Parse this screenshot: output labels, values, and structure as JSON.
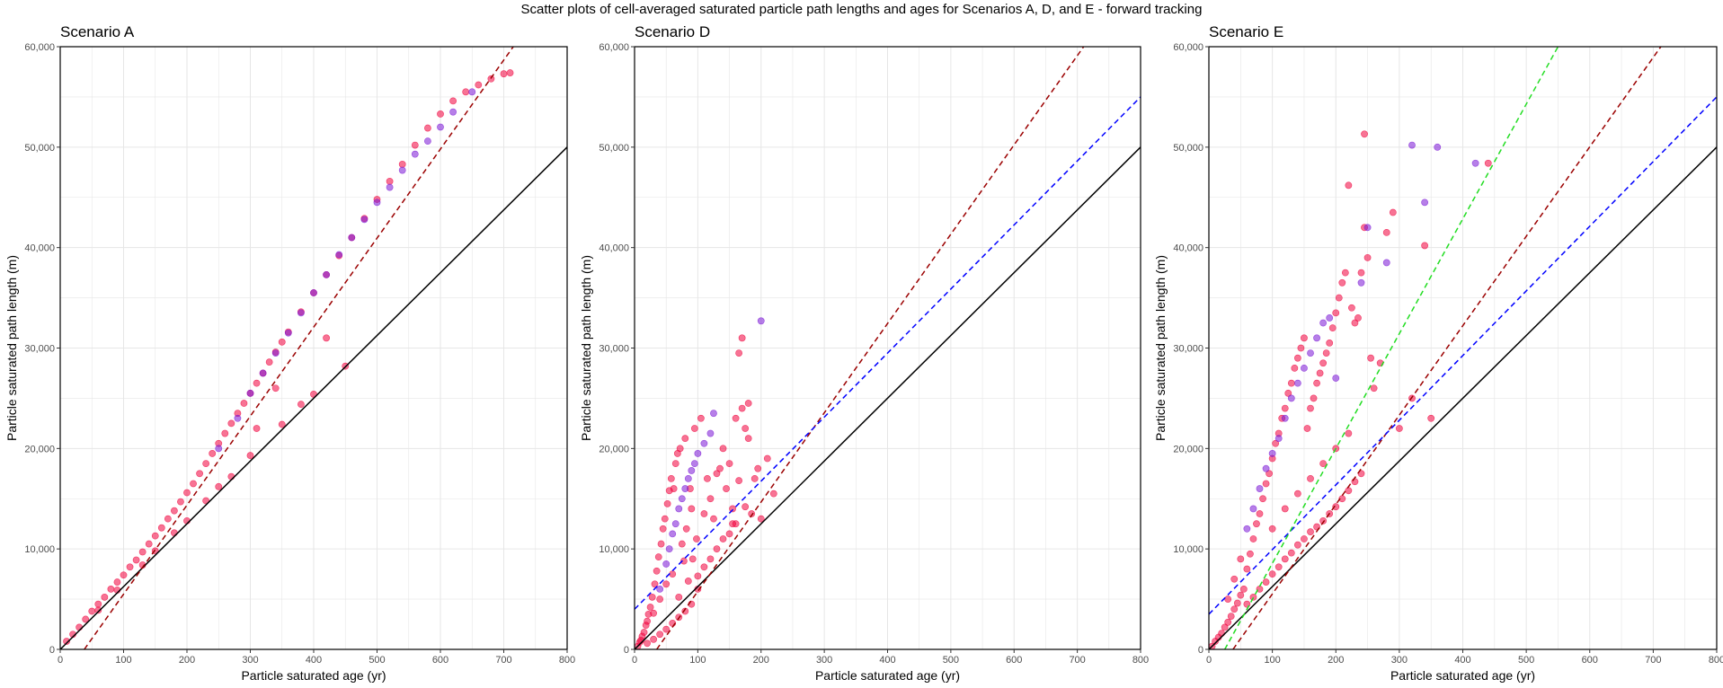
{
  "figure": {
    "title": "Scatter plots of cell-averaged saturated particle path lengths and ages for Scenarios A, D, and E - forward tracking"
  },
  "colors": {
    "point_red": "#f0003c",
    "point_purple": "#7a16d6",
    "identity_line": "#000000",
    "dashed_darkred": "#9b0000",
    "dashed_blue": "#0000ff",
    "dashed_green": "#22dd22",
    "grid": "#e6e6e6",
    "panel_border": "#000000"
  },
  "chart_data": [
    {
      "type": "scatter",
      "title": "Scenario A",
      "xlabel": "Particle saturated age (yr)",
      "ylabel": "Particle saturated path length (m)",
      "xlim": [
        0,
        800
      ],
      "ylim": [
        0,
        60000
      ],
      "xticks": [
        "0",
        "100",
        "200",
        "300",
        "400",
        "500",
        "600",
        "700",
        "800"
      ],
      "yticks": [
        "0",
        "10,000",
        "20,000",
        "30,000",
        "40,000",
        "50,000",
        "60,000"
      ],
      "grid": true,
      "lines": [
        {
          "style": "solid",
          "color": "#000000",
          "x": [
            0,
            800
          ],
          "y": [
            0,
            50000
          ]
        },
        {
          "style": "dashed",
          "color": "#9b0000",
          "x": [
            38,
            715
          ],
          "y": [
            0,
            60000
          ]
        }
      ],
      "series": [
        {
          "color": "#f0003c",
          "x": [
            10,
            20,
            30,
            40,
            50,
            60,
            70,
            80,
            90,
            100,
            110,
            120,
            130,
            140,
            150,
            160,
            170,
            180,
            190,
            200,
            210,
            220,
            230,
            240,
            250,
            260,
            270,
            280,
            290,
            300,
            310,
            320,
            330,
            340,
            350,
            360,
            380,
            400,
            420,
            440,
            460,
            480,
            500,
            520,
            540,
            560,
            580,
            600,
            620,
            640,
            660,
            680,
            700,
            710,
            150,
            200,
            250,
            300,
            350,
            400,
            450,
            380,
            270,
            230,
            180,
            130,
            90,
            60,
            310,
            340,
            420
          ],
          "y": [
            800,
            1500,
            2200,
            3000,
            3800,
            4500,
            5200,
            6000,
            6700,
            7400,
            8200,
            8900,
            9700,
            10500,
            11300,
            12100,
            13000,
            13800,
            14700,
            15600,
            16500,
            17500,
            18500,
            19500,
            20500,
            21500,
            22500,
            23500,
            24500,
            25500,
            26500,
            27500,
            28600,
            29600,
            30600,
            31600,
            33600,
            35500,
            37300,
            39200,
            41000,
            42900,
            44800,
            46600,
            48300,
            50200,
            51900,
            53300,
            54600,
            55500,
            56200,
            56800,
            57300,
            57400,
            9800,
            12800,
            16200,
            19300,
            22400,
            25400,
            28200,
            24400,
            17200,
            14800,
            11600,
            8400,
            5900,
            3900,
            22000,
            26000,
            31000
          ]
        },
        {
          "color": "#7a16d6",
          "x": [
            250,
            280,
            300,
            320,
            340,
            360,
            380,
            400,
            420,
            440,
            460,
            480,
            500,
            520,
            540,
            560,
            580,
            600,
            620,
            650
          ],
          "y": [
            20000,
            23000,
            25500,
            27500,
            29500,
            31500,
            33500,
            35500,
            37300,
            39300,
            41000,
            42800,
            44500,
            46000,
            47700,
            49300,
            50600,
            52000,
            53500,
            55500
          ]
        }
      ]
    },
    {
      "type": "scatter",
      "title": "Scenario D",
      "xlabel": "Particle saturated age (yr)",
      "ylabel": "Particle saturated path length (m)",
      "xlim": [
        0,
        800
      ],
      "ylim": [
        0,
        60000
      ],
      "xticks": [
        "0",
        "100",
        "200",
        "300",
        "400",
        "500",
        "600",
        "700",
        "800"
      ],
      "yticks": [
        "0",
        "10,000",
        "20,000",
        "30,000",
        "40,000",
        "50,000",
        "60,000"
      ],
      "grid": true,
      "lines": [
        {
          "style": "solid",
          "color": "#000000",
          "x": [
            0,
            800
          ],
          "y": [
            0,
            50000
          ]
        },
        {
          "style": "dashed",
          "color": "#9b0000",
          "x": [
            35,
            710
          ],
          "y": [
            0,
            60000
          ]
        },
        {
          "style": "dashed",
          "color": "#0000ff",
          "x": [
            0,
            800
          ],
          "y": [
            4000,
            55000
          ]
        }
      ],
      "series": [
        {
          "color": "#f0003c",
          "x": [
            5,
            8,
            10,
            12,
            15,
            18,
            20,
            22,
            25,
            28,
            30,
            32,
            35,
            38,
            40,
            42,
            45,
            48,
            50,
            52,
            55,
            58,
            60,
            62,
            65,
            68,
            70,
            72,
            75,
            78,
            80,
            82,
            85,
            88,
            90,
            92,
            95,
            98,
            100,
            105,
            110,
            115,
            120,
            125,
            130,
            135,
            140,
            145,
            150,
            155,
            160,
            165,
            170,
            175,
            180,
            185,
            190,
            200,
            210,
            220,
            160,
            170,
            180,
            120,
            140,
            150,
            100,
            90,
            80,
            70,
            60,
            50,
            40,
            30,
            20,
            110,
            130,
            155,
            165,
            175,
            195
          ],
          "y": [
            300,
            700,
            900,
            1300,
            1700,
            2400,
            2800,
            3500,
            4200,
            5200,
            3600,
            6500,
            7800,
            9200,
            5000,
            10500,
            12000,
            13000,
            6500,
            14500,
            15800,
            17000,
            7500,
            16000,
            18500,
            19500,
            5200,
            20000,
            10500,
            8800,
            21000,
            12000,
            6800,
            16000,
            14000,
            9000,
            22000,
            11000,
            7300,
            23000,
            8200,
            17000,
            9000,
            13000,
            10000,
            18000,
            11000,
            16000,
            11500,
            14000,
            12500,
            29500,
            31000,
            22000,
            24500,
            13500,
            17000,
            13000,
            19000,
            15500,
            23000,
            24000,
            21000,
            15000,
            20000,
            18500,
            6000,
            4500,
            3800,
            3200,
            2600,
            2000,
            1500,
            1000,
            600,
            13500,
            17500,
            12500,
            16800,
            14200,
            18000
          ]
        },
        {
          "color": "#7a16d6",
          "x": [
            40,
            50,
            55,
            60,
            65,
            70,
            75,
            80,
            85,
            90,
            95,
            100,
            110,
            120,
            125,
            200
          ],
          "y": [
            6000,
            8500,
            10000,
            11500,
            12500,
            14000,
            15000,
            16000,
            17000,
            17800,
            18500,
            19500,
            20500,
            21500,
            23500,
            32700
          ]
        }
      ]
    },
    {
      "type": "scatter",
      "title": "Scenario E",
      "xlabel": "Particle saturated age (yr)",
      "ylabel": "Particle saturated path length (m)",
      "xlim": [
        0,
        800
      ],
      "ylim": [
        0,
        60000
      ],
      "xticks": [
        "0",
        "100",
        "200",
        "300",
        "400",
        "500",
        "600",
        "700",
        "800"
      ],
      "yticks": [
        "0",
        "10,000",
        "20,000",
        "30,000",
        "40,000",
        "50,000",
        "60,000"
      ],
      "grid": true,
      "lines": [
        {
          "style": "solid",
          "color": "#000000",
          "x": [
            0,
            800
          ],
          "y": [
            0,
            50000
          ]
        },
        {
          "style": "dashed",
          "color": "#9b0000",
          "x": [
            38,
            712
          ],
          "y": [
            0,
            60000
          ]
        },
        {
          "style": "dashed",
          "color": "#0000ff",
          "x": [
            0,
            800
          ],
          "y": [
            3500,
            55000
          ]
        },
        {
          "style": "dashed",
          "color": "#22dd22",
          "x": [
            25,
            550
          ],
          "y": [
            0,
            60000
          ]
        }
      ],
      "series": [
        {
          "color": "#f0003c",
          "x": [
            5,
            10,
            15,
            20,
            25,
            30,
            35,
            40,
            45,
            50,
            55,
            60,
            65,
            70,
            75,
            80,
            85,
            90,
            95,
            100,
            105,
            110,
            115,
            120,
            125,
            130,
            135,
            140,
            145,
            150,
            155,
            160,
            165,
            170,
            175,
            180,
            185,
            190,
            195,
            200,
            205,
            210,
            215,
            220,
            225,
            230,
            235,
            240,
            245,
            250,
            255,
            260,
            270,
            280,
            290,
            300,
            320,
            340,
            350,
            60,
            70,
            80,
            90,
            100,
            110,
            120,
            130,
            140,
            150,
            160,
            170,
            180,
            190,
            200,
            210,
            220,
            230,
            240,
            100,
            120,
            140,
            160,
            180,
            200,
            220,
            30,
            40,
            50
          ],
          "y": [
            300,
            800,
            1200,
            1600,
            2200,
            2700,
            3300,
            4000,
            4600,
            5400,
            6000,
            8000,
            9500,
            11000,
            12500,
            13500,
            15000,
            16500,
            17500,
            19000,
            20500,
            21500,
            23000,
            24000,
            25500,
            26500,
            28000,
            29000,
            30000,
            31000,
            22000,
            24000,
            25000,
            26500,
            27500,
            28500,
            29500,
            30500,
            32000,
            33500,
            35000,
            36500,
            37500,
            46200,
            34000,
            32500,
            33000,
            37500,
            42000,
            39000,
            29000,
            26000,
            28500,
            41500,
            43500,
            22000,
            25000,
            40200,
            23000,
            4500,
            5200,
            6000,
            6700,
            7500,
            8200,
            9000,
            9600,
            10400,
            11000,
            11700,
            12200,
            12800,
            13500,
            14200,
            15000,
            15800,
            16700,
            17500,
            12000,
            14000,
            15500,
            17000,
            18500,
            20000,
            21500,
            5000,
            7000,
            9000
          ]
        },
        {
          "color": "#7a16d6",
          "x": [
            60,
            70,
            80,
            90,
            100,
            110,
            120,
            130,
            140,
            150,
            160,
            170,
            180,
            190,
            200,
            240,
            250,
            280,
            320,
            340,
            360,
            420
          ],
          "y": [
            12000,
            14000,
            16000,
            18000,
            19500,
            21000,
            23000,
            25000,
            26500,
            28000,
            29500,
            31000,
            32500,
            33000,
            27000,
            36500,
            42000,
            38500,
            50200,
            44500,
            50000,
            48400
          ]
        },
        {
          "color": "#f0003c",
          "x": [
            245,
            440
          ],
          "y": [
            51300,
            48400
          ]
        }
      ]
    }
  ]
}
